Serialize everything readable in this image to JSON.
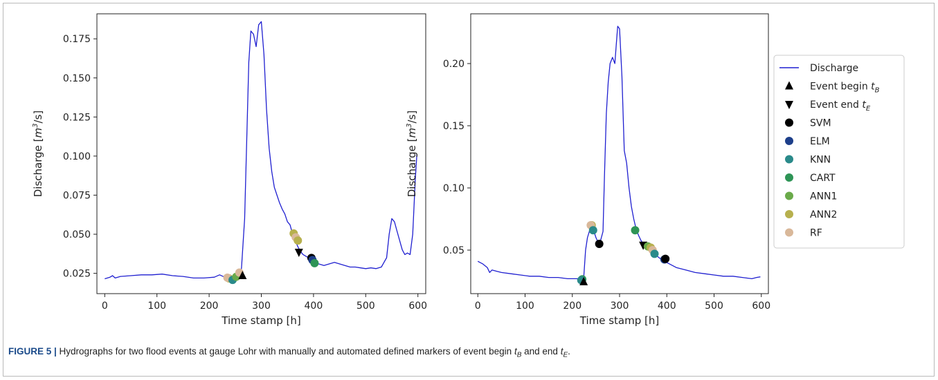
{
  "caption": {
    "label": "FIGURE 5 |",
    "text_a": " Hydrographs for two flood events at gauge Lohr with manually and automated defined markers of event begin ",
    "tb": "t",
    "tb_sub": "B",
    "text_b": " and end ",
    "te": "t",
    "te_sub": "E",
    "text_c": "."
  },
  "legend": [
    {
      "label": "Discharge",
      "marker": "line",
      "color": "#1f1fd0"
    },
    {
      "label": "Event begin",
      "sym": "t",
      "sub": "B",
      "marker": "triangle-up",
      "color": "#000000"
    },
    {
      "label": "Event end",
      "sym": "t",
      "sub": "E",
      "marker": "triangle-down",
      "color": "#000000"
    },
    {
      "label": "SVM",
      "marker": "circle",
      "color": "#000000"
    },
    {
      "label": "ELM",
      "marker": "circle",
      "color": "#1d3f8a"
    },
    {
      "label": "KNN",
      "marker": "circle",
      "color": "#2a8a8a"
    },
    {
      "label": "CART",
      "marker": "circle",
      "color": "#2e9456"
    },
    {
      "label": "ANN1",
      "marker": "circle",
      "color": "#6aaa4a"
    },
    {
      "label": "ANN2",
      "marker": "circle",
      "color": "#b7b04e"
    },
    {
      "label": "RF",
      "marker": "circle",
      "color": "#d9b89a"
    }
  ],
  "chart_data": [
    {
      "type": "line",
      "xlabel": "Time stamp [h]",
      "ylabel_main": "Discharge [",
      "ylabel_unit": "m",
      "ylabel_sup": "3",
      "ylabel_tail": "/s]",
      "xlim": [
        -15,
        615
      ],
      "ylim": [
        0.012,
        0.191
      ],
      "xticks": [
        0,
        100,
        200,
        300,
        400,
        500,
        600
      ],
      "yticks": [
        0.025,
        0.05,
        0.075,
        0.1,
        0.125,
        0.15,
        0.175
      ],
      "ytick_labels": [
        "0.025",
        "0.050",
        "0.075",
        "0.100",
        "0.125",
        "0.150",
        "0.175"
      ],
      "series": [
        {
          "x": [
            0,
            10,
            15,
            20,
            30,
            50,
            70,
            90,
            110,
            130,
            150,
            170,
            190,
            210,
            220,
            230,
            240,
            250,
            258,
            262,
            268,
            272,
            276,
            280,
            285,
            290,
            295,
            300,
            305,
            310,
            315,
            320,
            325,
            330,
            335,
            340,
            345,
            350,
            355,
            360,
            365,
            370,
            375,
            380,
            385,
            390,
            395,
            400,
            410,
            420,
            430,
            440,
            450,
            460,
            470,
            480,
            490,
            500,
            510,
            520,
            530,
            540,
            545,
            550,
            555,
            560,
            565,
            570,
            575,
            580,
            585,
            590,
            595,
            598
          ],
          "y": [
            0.0215,
            0.0225,
            0.0235,
            0.022,
            0.023,
            0.0235,
            0.024,
            0.024,
            0.0245,
            0.0235,
            0.023,
            0.022,
            0.022,
            0.0225,
            0.024,
            0.0225,
            0.022,
            0.024,
            0.0255,
            0.028,
            0.06,
            0.11,
            0.16,
            0.18,
            0.178,
            0.17,
            0.184,
            0.186,
            0.165,
            0.13,
            0.105,
            0.09,
            0.08,
            0.075,
            0.07,
            0.066,
            0.063,
            0.058,
            0.056,
            0.05,
            0.046,
            0.042,
            0.039,
            0.037,
            0.036,
            0.035,
            0.034,
            0.033,
            0.031,
            0.03,
            0.031,
            0.032,
            0.031,
            0.03,
            0.029,
            0.029,
            0.0285,
            0.028,
            0.0285,
            0.028,
            0.029,
            0.035,
            0.05,
            0.06,
            0.058,
            0.052,
            0.046,
            0.04,
            0.037,
            0.038,
            0.037,
            0.05,
            0.085,
            0.101
          ]
        }
      ],
      "markers": [
        {
          "type": "circle",
          "model": "ANN2",
          "x": 238,
          "y": 0.0218
        },
        {
          "type": "circle",
          "model": "RF",
          "x": 235,
          "y": 0.0222
        },
        {
          "type": "circle",
          "model": "KNN",
          "x": 245,
          "y": 0.0208
        },
        {
          "type": "circle",
          "model": "ANN1",
          "x": 252,
          "y": 0.0228
        },
        {
          "type": "circle",
          "model": "RF",
          "x": 258,
          "y": 0.0255
        },
        {
          "type": "triangle-up",
          "model": "Event begin",
          "x": 264,
          "y": 0.0235
        },
        {
          "type": "circle",
          "model": "ANN2",
          "x": 362,
          "y": 0.0505
        },
        {
          "type": "circle",
          "model": "RF",
          "x": 366,
          "y": 0.048
        },
        {
          "type": "circle",
          "model": "ANN2",
          "x": 370,
          "y": 0.046
        },
        {
          "type": "triangle-down",
          "model": "Event end",
          "x": 372,
          "y": 0.0385
        },
        {
          "type": "circle",
          "model": "SVM",
          "x": 396,
          "y": 0.0348
        },
        {
          "type": "circle",
          "model": "ELM",
          "x": 398,
          "y": 0.0335
        },
        {
          "type": "circle",
          "model": "CART",
          "x": 402,
          "y": 0.0315
        }
      ]
    },
    {
      "type": "line",
      "xlabel": "Time stamp [h]",
      "ylabel_main": "Discharge [",
      "ylabel_unit": "m",
      "ylabel_sup": "3",
      "ylabel_tail": "/s]",
      "xlim": [
        -15,
        615
      ],
      "ylim": [
        0.015,
        0.24
      ],
      "xticks": [
        0,
        100,
        200,
        300,
        400,
        500,
        600
      ],
      "yticks": [
        0.05,
        0.1,
        0.15,
        0.2
      ],
      "ytick_labels": [
        "0.05",
        "0.10",
        "0.15",
        "0.20"
      ],
      "series": [
        {
          "x": [
            0,
            10,
            20,
            25,
            30,
            40,
            50,
            70,
            90,
            110,
            130,
            150,
            170,
            190,
            210,
            220,
            224,
            228,
            232,
            236,
            240,
            245,
            250,
            255,
            260,
            265,
            268,
            272,
            276,
            280,
            285,
            290,
            293,
            296,
            300,
            305,
            310,
            315,
            320,
            325,
            330,
            335,
            340,
            345,
            350,
            355,
            360,
            370,
            380,
            390,
            400,
            420,
            440,
            460,
            480,
            500,
            520,
            540,
            560,
            580,
            590,
            598
          ],
          "y": [
            0.041,
            0.039,
            0.036,
            0.032,
            0.034,
            0.033,
            0.032,
            0.031,
            0.03,
            0.029,
            0.029,
            0.028,
            0.028,
            0.027,
            0.027,
            0.026,
            0.027,
            0.05,
            0.06,
            0.065,
            0.07,
            0.066,
            0.06,
            0.056,
            0.058,
            0.065,
            0.11,
            0.16,
            0.185,
            0.2,
            0.205,
            0.2,
            0.215,
            0.23,
            0.228,
            0.19,
            0.13,
            0.12,
            0.1,
            0.085,
            0.075,
            0.067,
            0.062,
            0.058,
            0.055,
            0.053,
            0.051,
            0.048,
            0.045,
            0.042,
            0.04,
            0.036,
            0.034,
            0.032,
            0.031,
            0.03,
            0.029,
            0.029,
            0.028,
            0.027,
            0.028,
            0.0285
          ]
        }
      ],
      "markers": [
        {
          "type": "circle",
          "model": "CART",
          "x": 221,
          "y": 0.0265
        },
        {
          "type": "circle",
          "model": "KNN",
          "x": 219,
          "y": 0.0258
        },
        {
          "type": "triangle-up",
          "model": "Event begin",
          "x": 224,
          "y": 0.0245
        },
        {
          "type": "circle",
          "model": "ANN2",
          "x": 241,
          "y": 0.07
        },
        {
          "type": "circle",
          "model": "RF",
          "x": 239,
          "y": 0.07
        },
        {
          "type": "circle",
          "model": "KNN",
          "x": 244,
          "y": 0.066
        },
        {
          "type": "circle",
          "model": "SVM",
          "x": 257,
          "y": 0.055
        },
        {
          "type": "circle",
          "model": "CART",
          "x": 333,
          "y": 0.066
        },
        {
          "type": "triangle-down",
          "model": "Event end",
          "x": 350,
          "y": 0.054
        },
        {
          "type": "circle",
          "model": "ANN1",
          "x": 360,
          "y": 0.053
        },
        {
          "type": "circle",
          "model": "ANN2",
          "x": 366,
          "y": 0.052
        },
        {
          "type": "circle",
          "model": "RF",
          "x": 370,
          "y": 0.05
        },
        {
          "type": "circle",
          "model": "KNN",
          "x": 374,
          "y": 0.047
        },
        {
          "type": "circle",
          "model": "ELM",
          "x": 395,
          "y": 0.0425
        },
        {
          "type": "circle",
          "model": "SVM",
          "x": 397,
          "y": 0.043
        }
      ]
    }
  ]
}
